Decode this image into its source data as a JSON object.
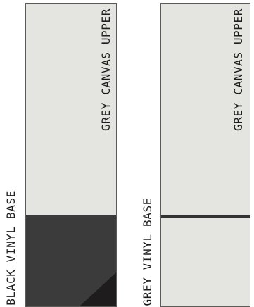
{
  "swatches": [
    {
      "upper_label": "GREY CANVAS UPPER",
      "base_label": "BLACK VINYL BASE",
      "colors": {
        "upper": "#e4e4e1",
        "base": "#3b3b3b",
        "corner": "#1f1c1d"
      }
    },
    {
      "upper_label": "GREY CANVAS UPPER",
      "base_label": "GREY VINYL BASE",
      "colors": {
        "upper": "#e4e4e1",
        "base": "#e4e4e1",
        "seam": "#333333"
      }
    }
  ]
}
